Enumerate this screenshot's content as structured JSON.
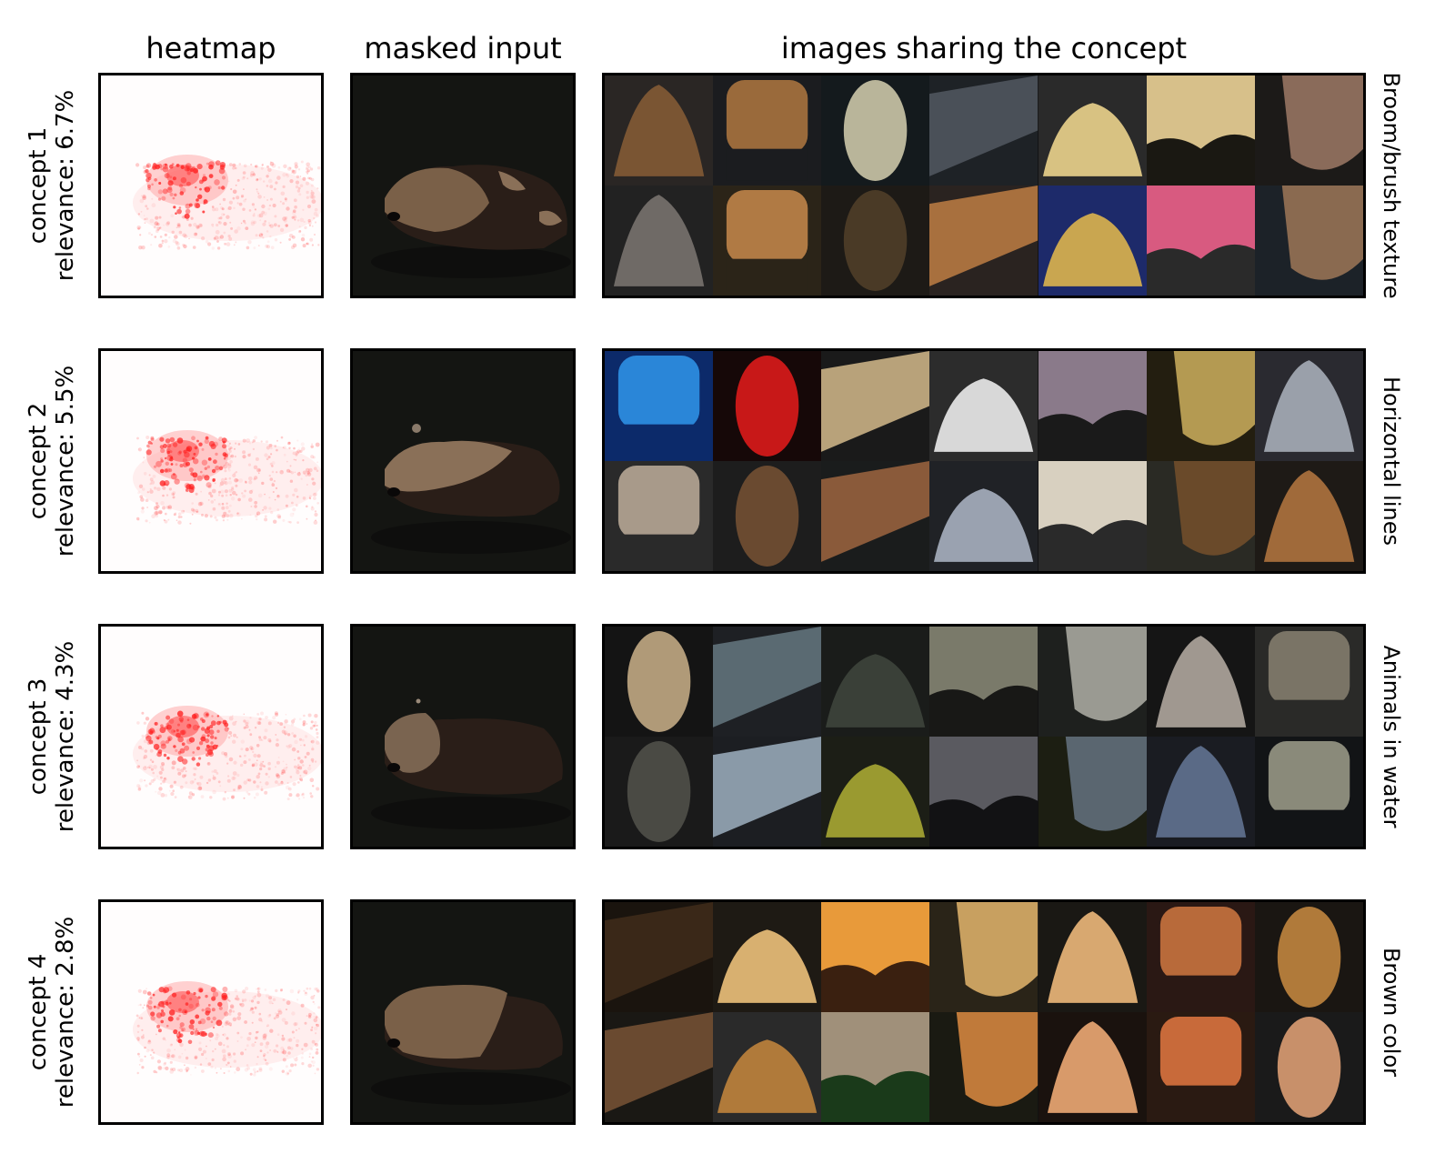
{
  "headers": {
    "heatmap": "heatmap",
    "masked_input": "masked input",
    "images": "images sharing the concept"
  },
  "concepts": [
    {
      "label": "concept 1",
      "relevance": "relevance: 6.7%",
      "name": "Broom/brush texture",
      "tiles": [
        [
          "#2a2624",
          "#7a5533"
        ],
        [
          "#1b1c1f",
          "#9a6a3b"
        ],
        [
          "#141a1d",
          "#b9b59a"
        ],
        [
          "#1e2226",
          "#4a5058"
        ],
        [
          "#2a2a2a",
          "#d8c282"
        ],
        [
          "#1a1812",
          "#d7c08a"
        ],
        [
          "#1c1a18",
          "#8a6b5a"
        ],
        [
          "#222",
          "#6f6a66"
        ],
        [
          "#2b2418",
          "#b07a44"
        ],
        [
          "#1d1a16",
          "#4a3a26"
        ],
        [
          "#2a2320",
          "#a8703e"
        ],
        [
          "#1d2a6a",
          "#c9a650"
        ],
        [
          "#2a2a2a",
          "#d85a80"
        ],
        [
          "#1c2228",
          "#8a6a50"
        ]
      ]
    },
    {
      "label": "concept 2",
      "relevance": "relevance: 5.5%",
      "name": "Horizontal lines",
      "tiles": [
        [
          "#0c2a6a",
          "#2a86d8"
        ],
        [
          "#160808",
          "#c81818"
        ],
        [
          "#1a1a1a",
          "#b8a27a"
        ],
        [
          "#2c2c2c",
          "#d8d8d8"
        ],
        [
          "#1a1a1a",
          "#8a7a8a"
        ],
        [
          "#231e10",
          "#b49a52"
        ],
        [
          "#2a2a30",
          "#9aa0aa"
        ],
        [
          "#2a2a2a",
          "#a89a8a"
        ],
        [
          "#1d1d1d",
          "#6a4a30"
        ],
        [
          "#1a1c1c",
          "#8a5a3a"
        ],
        [
          "#202226",
          "#9aa2b0"
        ],
        [
          "#2a2a2a",
          "#d8d0c0"
        ],
        [
          "#2a2a24",
          "#6a4a2a"
        ],
        [
          "#1e1a16",
          "#a06a3a"
        ]
      ]
    },
    {
      "label": "concept 3",
      "relevance": "relevance: 4.3%",
      "name": "Animals in water",
      "tiles": [
        [
          "#141414",
          "#b09a78"
        ],
        [
          "#1e2024",
          "#5a6a72"
        ],
        [
          "#1a1c1a",
          "#3a4038"
        ],
        [
          "#181816",
          "#7a7a6a"
        ],
        [
          "#1e201e",
          "#9a9a92"
        ],
        [
          "#151515",
          "#a09890"
        ],
        [
          "#2a2a28",
          "#7a7466"
        ],
        [
          "#1a1a1a",
          "#4a4a44"
        ],
        [
          "#1c1e22",
          "#8a9aa8"
        ],
        [
          "#1c1e16",
          "#9a9a30"
        ],
        [
          "#121214",
          "#5a5a60"
        ],
        [
          "#1c1e12",
          "#5a6670"
        ],
        [
          "#1a1c22",
          "#5a6a86"
        ],
        [
          "#121416",
          "#8a8a7a"
        ]
      ]
    },
    {
      "label": "concept 4",
      "relevance": "relevance: 2.8%",
      "name": "Brown color",
      "tiles": [
        [
          "#1a140e",
          "#3a2818"
        ],
        [
          "#1e1a14",
          "#d8b070"
        ],
        [
          "#3a2010",
          "#e89a3a"
        ],
        [
          "#2a2418",
          "#c8a060"
        ],
        [
          "#1a1814",
          "#d8a870"
        ],
        [
          "#2a1814",
          "#b86a3a"
        ],
        [
          "#1a1612",
          "#b07a3a"
        ],
        [
          "#1a1814",
          "#6a4a30"
        ],
        [
          "#2a2a2a",
          "#b07a3a"
        ],
        [
          "#1a3a1a",
          "#a0907a"
        ],
        [
          "#1a1a12",
          "#c07a3a"
        ],
        [
          "#1a120e",
          "#d89a6a"
        ],
        [
          "#2a1a12",
          "#c86a3a"
        ],
        [
          "#1a1a1a",
          "#c8906a"
        ]
      ]
    }
  ]
}
